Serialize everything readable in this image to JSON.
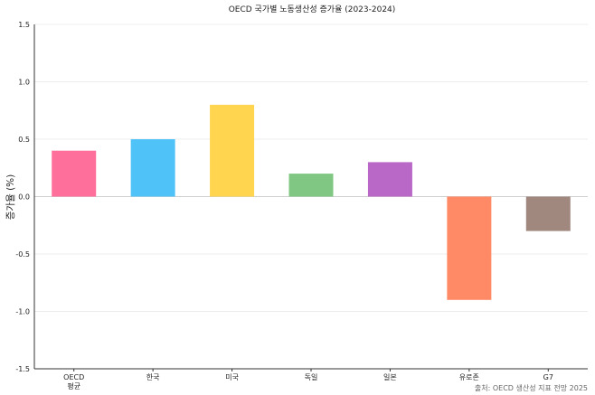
{
  "chart_data": {
    "type": "bar",
    "title": "OECD 국가별 노동생산성 증가율 (2023-2024)",
    "xlabel": "",
    "ylabel": "증가율 (%)",
    "ylim": [
      -1.5,
      1.5
    ],
    "yticks": [
      "1.5",
      "1.0",
      "0.5",
      "0.0",
      "-0.5",
      "-1.0",
      "-1.5"
    ],
    "grid": true,
    "categories": [
      "OECD 평균",
      "한국",
      "미국",
      "독일",
      "일본",
      "유로존",
      "G7"
    ],
    "values": [
      0.4,
      0.5,
      0.8,
      0.2,
      0.3,
      -0.9,
      -0.3
    ],
    "colors": [
      "#ff6f9b",
      "#4fc3f7",
      "#ffd54f",
      "#81c784",
      "#ba68c8",
      "#ff8a65",
      "#a1887f"
    ],
    "source": "출처: OECD 생산성 지표 전망 2025"
  }
}
